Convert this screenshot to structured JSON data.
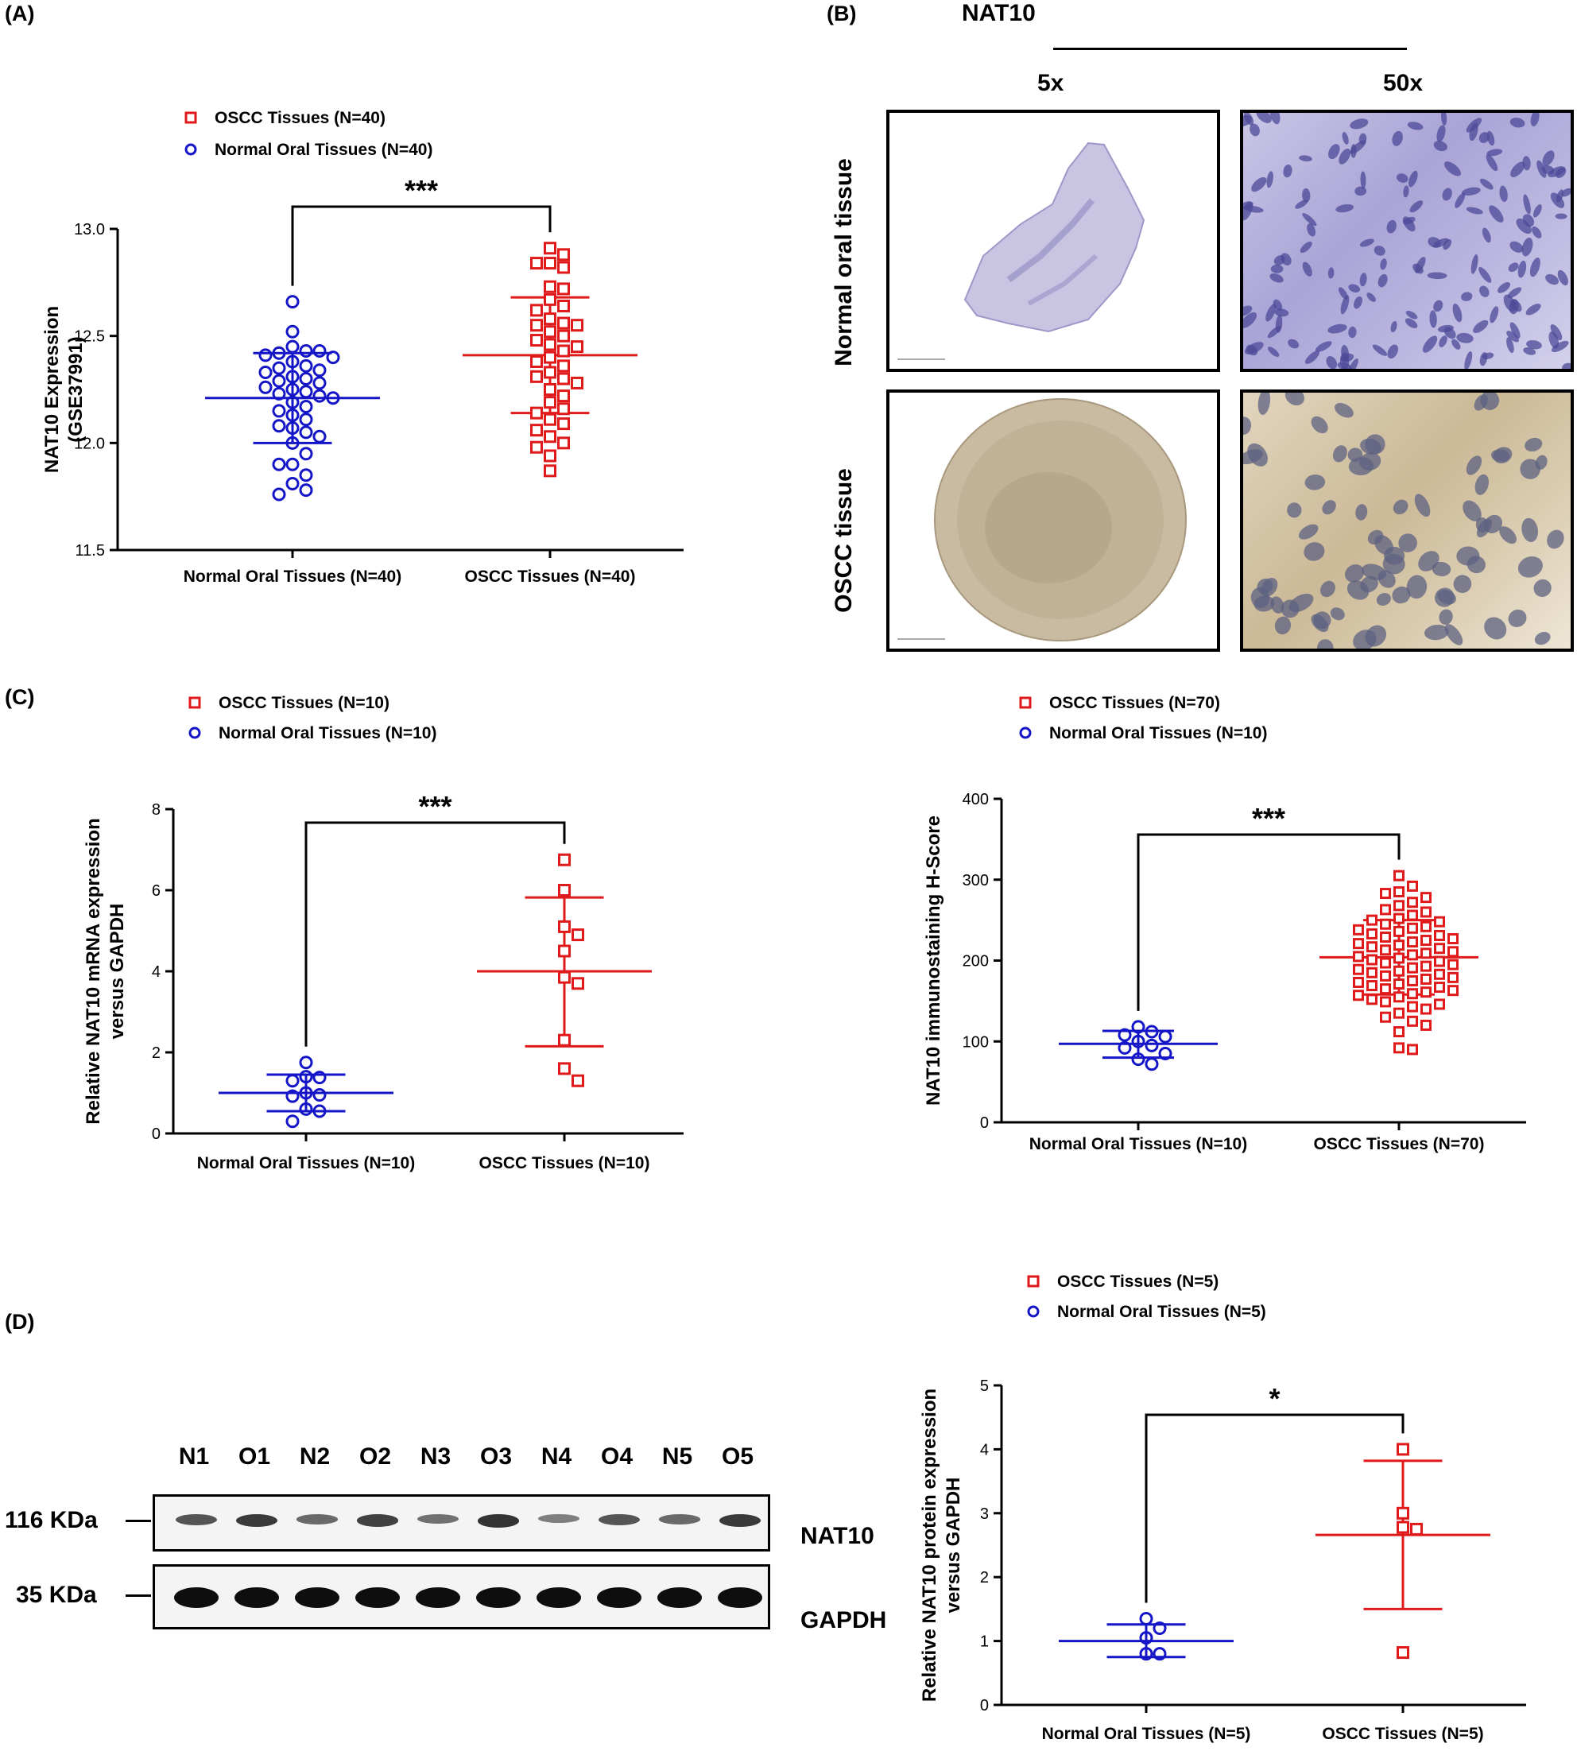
{
  "panels": {
    "A": "(A)",
    "B": "(B)",
    "C": "(C)",
    "D": "(D)"
  },
  "ihc": {
    "title": "NAT10",
    "mag_low": "5x",
    "mag_high": "50x",
    "row1_label": "Normal oral tissue",
    "row2_label": "OSCC tissue"
  },
  "blot": {
    "lanes": [
      "N1",
      "O1",
      "N2",
      "O2",
      "N3",
      "O3",
      "N4",
      "O4",
      "N5",
      "O5"
    ],
    "nat10_kda": "116 KDa",
    "gapdh_kda": "35 KDa",
    "nat10_label": "NAT10",
    "gapdh_label": "GAPDH",
    "nat10_intensity": [
      0.6,
      0.8,
      0.45,
      0.75,
      0.4,
      0.85,
      0.3,
      0.6,
      0.45,
      0.8
    ]
  },
  "colors": {
    "normal": "#1515c8",
    "oscc": "#e01a1a"
  },
  "chart_data": [
    {
      "id": "A",
      "type": "scatter",
      "legend": [
        "OSCC Tissues (N=40)",
        "Normal Oral Tissues (N=40)"
      ],
      "categories": [
        "Normal Oral Tissues (N=40)",
        "OSCC Tissues (N=40)"
      ],
      "ylabel": "NAT10 Expression\n(GSE37991)",
      "ylim": [
        11.5,
        13.0
      ],
      "yticks": [
        11.5,
        12.0,
        12.5,
        13.0
      ],
      "ytick_labels": [
        "11.5",
        "12.0",
        "12.5",
        "13.0"
      ],
      "significance": "***",
      "series": [
        {
          "name": "Normal Oral Tissues (N=40)",
          "mean": 12.21,
          "sd_low": 12.0,
          "sd_high": 12.42,
          "values": [
            12.66,
            12.52,
            12.45,
            12.43,
            12.42,
            12.43,
            12.41,
            12.4,
            12.38,
            12.36,
            12.35,
            12.34,
            12.33,
            12.31,
            12.3,
            12.29,
            12.28,
            12.26,
            12.25,
            12.24,
            12.23,
            12.22,
            12.21,
            12.19,
            12.17,
            12.15,
            12.13,
            12.11,
            12.08,
            12.07,
            12.05,
            12.03,
            12.0,
            11.95,
            11.9,
            11.9,
            11.85,
            11.81,
            11.78,
            11.76
          ]
        },
        {
          "name": "OSCC Tissues (N=40)",
          "mean": 12.41,
          "sd_low": 12.14,
          "sd_high": 12.68,
          "values": [
            12.91,
            12.88,
            12.84,
            12.82,
            12.84,
            12.73,
            12.72,
            12.67,
            12.64,
            12.62,
            12.58,
            12.56,
            12.55,
            12.55,
            12.52,
            12.5,
            12.48,
            12.46,
            12.45,
            12.43,
            12.4,
            12.38,
            12.36,
            12.33,
            12.31,
            12.3,
            12.28,
            12.25,
            12.22,
            12.19,
            12.16,
            12.14,
            12.11,
            12.09,
            12.06,
            12.03,
            12.0,
            11.98,
            11.94,
            11.87
          ]
        }
      ]
    },
    {
      "id": "C",
      "type": "scatter",
      "legend": [
        "OSCC Tissues (N=10)",
        "Normal Oral Tissues (N=10)"
      ],
      "categories": [
        "Normal Oral Tissues (N=10)",
        "OSCC Tissues (N=10)"
      ],
      "ylabel": "Relative NAT10 mRNA expression\nversus GAPDH",
      "ylim": [
        0,
        8
      ],
      "yticks": [
        0,
        2,
        4,
        6,
        8
      ],
      "ytick_labels": [
        "0",
        "2",
        "4",
        "6",
        "8"
      ],
      "significance": "***",
      "series": [
        {
          "name": "Normal Oral Tissues (N=10)",
          "mean": 1.0,
          "sd_low": 0.55,
          "sd_high": 1.45,
          "values": [
            1.75,
            1.4,
            1.38,
            1.3,
            1.0,
            0.95,
            0.92,
            0.6,
            0.55,
            0.3
          ]
        },
        {
          "name": "OSCC Tissues (N=10)",
          "mean": 4.0,
          "sd_low": 2.15,
          "sd_high": 5.82,
          "values": [
            6.75,
            6.0,
            5.1,
            4.9,
            4.5,
            3.85,
            3.7,
            2.3,
            1.6,
            1.3
          ]
        }
      ]
    },
    {
      "id": "B2",
      "type": "scatter",
      "legend": [
        "OSCC Tissues (N=70)",
        "Normal Oral Tissues (N=10)"
      ],
      "categories": [
        "Normal Oral Tissues (N=10)",
        "OSCC Tissues (N=70)"
      ],
      "ylabel": "NAT10 immunostaining H-Score",
      "ylim": [
        0,
        400
      ],
      "yticks": [
        0,
        100,
        200,
        300,
        400
      ],
      "ytick_labels": [
        "0",
        "100",
        "200",
        "300",
        "400"
      ],
      "significance": "***",
      "series": [
        {
          "name": "Normal Oral Tissues (N=10)",
          "mean": 97,
          "sd_low": 80,
          "sd_high": 113,
          "values": [
            118,
            112,
            108,
            106,
            100,
            95,
            92,
            85,
            78,
            72
          ]
        },
        {
          "name": "OSCC Tissues (N=70)",
          "mean": 204,
          "sd_low": 158,
          "sd_high": 250,
          "values": [
            305,
            292,
            285,
            283,
            278,
            272,
            268,
            263,
            260,
            256,
            252,
            250,
            248,
            245,
            242,
            240,
            238,
            236,
            233,
            231,
            229,
            227,
            225,
            223,
            221,
            219,
            217,
            215,
            213,
            211,
            209,
            207,
            205,
            203,
            201,
            199,
            197,
            195,
            193,
            191,
            189,
            187,
            185,
            183,
            181,
            179,
            177,
            175,
            173,
            171,
            169,
            167,
            165,
            163,
            161,
            159,
            157,
            155,
            152,
            149,
            146,
            143,
            140,
            135,
            130,
            125,
            120,
            112,
            92,
            90
          ]
        }
      ]
    },
    {
      "id": "D",
      "type": "scatter",
      "legend": [
        "OSCC Tissues (N=5)",
        "Normal Oral Tissues (N=5)"
      ],
      "categories": [
        "Normal Oral Tissues (N=5)",
        "OSCC Tissues (N=5)"
      ],
      "ylabel": "Relative NAT10 protein expression\nversus GAPDH",
      "ylim": [
        0,
        5
      ],
      "yticks": [
        0,
        1,
        2,
        3,
        4,
        5
      ],
      "ytick_labels": [
        "0",
        "1",
        "2",
        "3",
        "4",
        "5"
      ],
      "significance": "*",
      "series": [
        {
          "name": "Normal Oral Tissues (N=5)",
          "mean": 1.0,
          "sd_low": 0.75,
          "sd_high": 1.26,
          "values": [
            1.35,
            1.2,
            1.05,
            0.8,
            0.8
          ]
        },
        {
          "name": "OSCC Tissues (N=5)",
          "mean": 2.66,
          "sd_low": 1.5,
          "sd_high": 3.82,
          "values": [
            4.0,
            3.0,
            2.78,
            2.75,
            0.82
          ]
        }
      ]
    }
  ]
}
